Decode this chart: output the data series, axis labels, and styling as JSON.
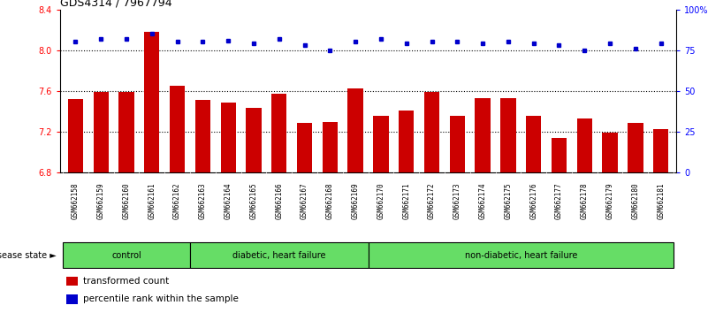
{
  "title": "GDS4314 / 7967794",
  "samples": [
    "GSM662158",
    "GSM662159",
    "GSM662160",
    "GSM662161",
    "GSM662162",
    "GSM662163",
    "GSM662164",
    "GSM662165",
    "GSM662166",
    "GSM662167",
    "GSM662168",
    "GSM662169",
    "GSM662170",
    "GSM662171",
    "GSM662172",
    "GSM662173",
    "GSM662174",
    "GSM662175",
    "GSM662176",
    "GSM662177",
    "GSM662178",
    "GSM662179",
    "GSM662180",
    "GSM662181"
  ],
  "transformed_count": [
    7.52,
    7.59,
    7.59,
    8.18,
    7.65,
    7.51,
    7.48,
    7.43,
    7.57,
    7.28,
    7.29,
    7.62,
    7.35,
    7.41,
    7.59,
    7.35,
    7.53,
    7.53,
    7.35,
    7.14,
    7.33,
    7.19,
    7.28,
    7.22
  ],
  "percentile_rank": [
    80,
    82,
    82,
    85,
    80,
    80,
    81,
    79,
    82,
    78,
    75,
    80,
    82,
    79,
    80,
    80,
    79,
    80,
    79,
    78,
    75,
    79,
    76,
    79
  ],
  "group_boundaries": [
    {
      "label": "control",
      "start": 0,
      "end": 5
    },
    {
      "label": "diabetic, heart failure",
      "start": 5,
      "end": 12
    },
    {
      "label": "non-diabetic, heart failure",
      "start": 12,
      "end": 24
    }
  ],
  "ylim_left": [
    6.8,
    8.4
  ],
  "ylim_right": [
    0,
    100
  ],
  "bar_color": "#cc0000",
  "dot_color": "#0000cc",
  "bg_plot": "#ffffff",
  "bg_label_row": "#c8c8c8",
  "group_color": "#66dd66",
  "title_fontsize": 9,
  "tick_fontsize": 7,
  "xtick_fontsize": 5.5,
  "legend_fontsize": 7.5
}
